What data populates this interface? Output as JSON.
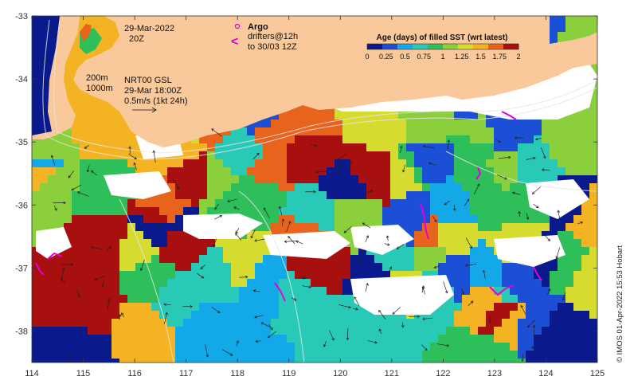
{
  "map": {
    "lon_range": [
      114,
      125
    ],
    "lat_range": [
      -38.5,
      -33
    ],
    "x_ticks": [
      "114",
      "115",
      "116",
      "117",
      "118",
      "119",
      "120",
      "121",
      "122",
      "123",
      "124",
      "125"
    ],
    "y_ticks": [
      "-33",
      "-34",
      "-35",
      "-36",
      "-37",
      "-38"
    ],
    "land_color": "#f9c89b",
    "no_data_color": "#ffffff"
  },
  "annotations": {
    "date_line1": "29-Mar-2022",
    "date_line2": "20Z",
    "contour_200": "200m",
    "contour_1000": "1000m",
    "current_product": "NRT00 GSL",
    "current_time": "29-Mar 18:00Z",
    "current_scale": "0.5m/s (1kt 24h)",
    "argo_label": "Argo",
    "argo_marker": "o",
    "drifter_marker": "<",
    "drifters_line1": "drifters@12h",
    "drifters_line2": "to 30/03 12Z",
    "credit": "© IMOS 01-Apr-2022 15:53 Hobart"
  },
  "colorbar": {
    "title": "Age (days) of filled SST (wrt latest)",
    "ticks": [
      "0",
      "0.25",
      "0.5",
      "0.75",
      "1",
      "1.25",
      "1.5",
      "1.75",
      "2"
    ],
    "colors": [
      "#0a1a8c",
      "#1a4fd6",
      "#13a9e8",
      "#29c9b8",
      "#2fbf5a",
      "#8ccf3c",
      "#d6dc2f",
      "#f3b323",
      "#e8641c",
      "#a80f0f"
    ]
  }
}
